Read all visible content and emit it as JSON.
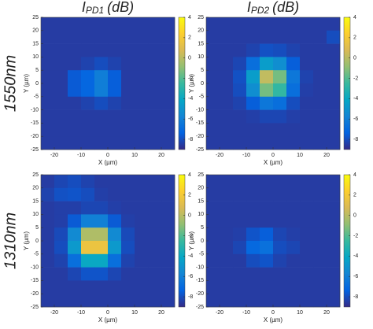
{
  "chart_data": [
    {
      "type": "heatmap",
      "title": {
        "main": "I",
        "sub": "PD1",
        "unit": "(dB)"
      },
      "row_label": "1550nm",
      "xlabel": "X (µm)",
      "ylabel": "Y (µm)",
      "x": [
        -22.5,
        -17.5,
        -12.5,
        -7.5,
        -2.5,
        2.5,
        7.5,
        12.5,
        17.5,
        22.5
      ],
      "y": [
        22.5,
        17.5,
        12.5,
        7.5,
        2.5,
        -2.5,
        -7.5,
        -12.5,
        -17.5,
        -22.5
      ],
      "z": [
        [
          -8.5,
          -8.5,
          -8.5,
          -8.5,
          -8.5,
          -8.5,
          -8.5,
          -8.5,
          -8.5,
          -8.5
        ],
        [
          -8.5,
          -8.5,
          -8.5,
          -8.5,
          -8.5,
          -8.5,
          -8.5,
          -8.5,
          -8.5,
          -8.5
        ],
        [
          -8.5,
          -8.5,
          -8.5,
          -8.5,
          -8.5,
          -8.5,
          -8.5,
          -8.5,
          -8.5,
          -8.5
        ],
        [
          -8.5,
          -8.5,
          -8.5,
          -8.3,
          -8.0,
          -8.3,
          -8.5,
          -8.5,
          -8.5,
          -8.5
        ],
        [
          -8.5,
          -8.5,
          -7.6,
          -7.2,
          -6.1,
          -7.5,
          -8.5,
          -8.5,
          -8.5,
          -8.5
        ],
        [
          -8.5,
          -8.5,
          -7.6,
          -7.2,
          -6.1,
          -7.5,
          -8.5,
          -8.5,
          -8.5,
          -8.5
        ],
        [
          -8.5,
          -8.5,
          -8.5,
          -8.3,
          -8.0,
          -8.3,
          -8.5,
          -8.5,
          -8.5,
          -8.5
        ],
        [
          -8.5,
          -8.5,
          -8.5,
          -8.5,
          -8.5,
          -8.5,
          -8.5,
          -8.5,
          -8.5,
          -8.5
        ],
        [
          -8.5,
          -8.5,
          -8.5,
          -8.5,
          -8.5,
          -8.5,
          -8.5,
          -8.5,
          -8.5,
          -8.5
        ],
        [
          -8.5,
          -8.5,
          -8.5,
          -8.5,
          -8.5,
          -8.5,
          -8.5,
          -8.5,
          -8.5,
          -8.5
        ]
      ],
      "xlim": [
        -25,
        25
      ],
      "ylim": [
        -25,
        25
      ],
      "xticks": [
        -20,
        -10,
        0,
        10,
        20
      ],
      "yticks": [
        -25,
        -20,
        -15,
        -10,
        -5,
        0,
        5,
        10,
        15,
        20,
        25
      ],
      "clim": [
        -9,
        4
      ],
      "cticks": [
        -8,
        -6,
        -4,
        -2,
        0,
        2,
        4
      ],
      "colormap": "parula"
    },
    {
      "type": "heatmap",
      "title": {
        "main": "I",
        "sub": "PD2",
        "unit": "(dB)"
      },
      "xlabel": "X (µm)",
      "ylabel": "Y (µm)",
      "x": [
        -22.5,
        -17.5,
        -12.5,
        -7.5,
        -2.5,
        2.5,
        7.5,
        12.5,
        17.5,
        22.5
      ],
      "y": [
        22.5,
        17.5,
        12.5,
        7.5,
        2.5,
        -2.5,
        -7.5,
        -12.5,
        -17.5,
        -22.5
      ],
      "z": [
        [
          -8.5,
          -8.5,
          -8.5,
          -8.5,
          -8.5,
          -8.5,
          -8.5,
          -8.5,
          -8.5,
          -8.5
        ],
        [
          -8.5,
          -8.5,
          -8.5,
          -8.5,
          -8.5,
          -8.5,
          -8.5,
          -8.5,
          -8.5,
          -8.0
        ],
        [
          -8.5,
          -8.5,
          -8.5,
          -8.3,
          -7.9,
          -8.0,
          -8.3,
          -8.5,
          -8.5,
          -8.5
        ],
        [
          -8.5,
          -8.5,
          -8.2,
          -6.8,
          -4.6,
          -5.3,
          -7.5,
          -8.5,
          -8.5,
          -8.5
        ],
        [
          -8.5,
          -8.5,
          -7.9,
          -4.6,
          0.2,
          -1.4,
          -6.4,
          -8.3,
          -8.5,
          -8.5
        ],
        [
          -8.5,
          -8.5,
          -8.0,
          -5.3,
          -1.4,
          -2.7,
          -6.8,
          -8.4,
          -8.5,
          -8.5
        ],
        [
          -8.5,
          -8.5,
          -8.3,
          -7.5,
          -6.4,
          -6.8,
          -8.0,
          -8.5,
          -8.5,
          -8.5
        ],
        [
          -8.5,
          -8.5,
          -8.5,
          -8.4,
          -8.2,
          -8.2,
          -8.4,
          -8.5,
          -8.5,
          -8.5
        ],
        [
          -8.5,
          -8.5,
          -8.5,
          -8.5,
          -8.5,
          -8.5,
          -8.5,
          -8.5,
          -8.5,
          -8.5
        ],
        [
          -8.5,
          -8.5,
          -8.5,
          -8.5,
          -8.5,
          -8.5,
          -8.5,
          -8.5,
          -8.5,
          -8.5
        ]
      ],
      "xlim": [
        -25,
        25
      ],
      "ylim": [
        -25,
        25
      ],
      "xticks": [
        -20,
        -10,
        0,
        10,
        20
      ],
      "yticks": [
        -25,
        -20,
        -15,
        -10,
        -5,
        0,
        5,
        10,
        15,
        20,
        25
      ],
      "clim": [
        -9,
        4
      ],
      "cticks": [
        -8,
        -6,
        -4,
        -2,
        0,
        2,
        4
      ],
      "colormap": "parula"
    },
    {
      "type": "heatmap",
      "row_label": "1310nm",
      "xlabel": "X (µm)",
      "ylabel": "Y (µm)",
      "x": [
        -22.5,
        -17.5,
        -12.5,
        -7.5,
        -2.5,
        2.5,
        7.5,
        12.5,
        17.5,
        22.5
      ],
      "y": [
        22.5,
        17.5,
        12.5,
        7.5,
        2.5,
        -2.5,
        -7.5,
        -12.5,
        -17.5,
        -22.5
      ],
      "z": [
        [
          -8.5,
          -8.2,
          -8.0,
          -8.3,
          -8.5,
          -8.5,
          -8.5,
          -8.5,
          -8.5,
          -8.5
        ],
        [
          -8.3,
          -7.9,
          -7.8,
          -8.0,
          -8.4,
          -8.5,
          -8.5,
          -8.5,
          -8.5,
          -8.5
        ],
        [
          -8.5,
          -8.4,
          -8.4,
          -8.2,
          -8.2,
          -8.4,
          -8.5,
          -8.5,
          -8.5,
          -8.5
        ],
        [
          -8.5,
          -8.4,
          -7.6,
          -6.0,
          -6.0,
          -7.6,
          -8.4,
          -8.5,
          -8.5,
          -8.5
        ],
        [
          -8.5,
          -8.1,
          -5.5,
          -0.2,
          -0.2,
          -5.5,
          -8.1,
          -8.5,
          -8.5,
          -8.5
        ],
        [
          -8.5,
          -8.0,
          -4.8,
          1.6,
          1.6,
          -4.8,
          -8.0,
          -8.5,
          -8.5,
          -8.5
        ],
        [
          -8.5,
          -8.3,
          -6.8,
          -4.0,
          -4.0,
          -6.8,
          -8.3,
          -8.5,
          -8.5,
          -8.5
        ],
        [
          -8.5,
          -8.5,
          -8.2,
          -7.8,
          -7.8,
          -8.2,
          -8.5,
          -8.5,
          -8.5,
          -8.5
        ],
        [
          -8.5,
          -8.5,
          -8.5,
          -8.5,
          -8.5,
          -8.5,
          -8.5,
          -8.5,
          -8.5,
          -8.5
        ],
        [
          -8.5,
          -8.5,
          -8.5,
          -8.5,
          -8.5,
          -8.5,
          -8.5,
          -8.5,
          -8.5,
          -8.5
        ]
      ],
      "xlim": [
        -25,
        25
      ],
      "ylim": [
        -25,
        25
      ],
      "xticks": [
        -20,
        -10,
        0,
        10,
        20
      ],
      "yticks": [
        -25,
        -20,
        -15,
        -10,
        -5,
        0,
        5,
        10,
        15,
        20,
        25
      ],
      "clim": [
        -9,
        4
      ],
      "cticks": [
        -8,
        -6,
        -4,
        -2,
        0,
        2,
        4
      ],
      "colormap": "parula"
    },
    {
      "type": "heatmap",
      "xlabel": "X (µm)",
      "ylabel": "Y (µm)",
      "x": [
        -22.5,
        -17.5,
        -12.5,
        -7.5,
        -2.5,
        2.5,
        7.5,
        12.5,
        17.5,
        22.5
      ],
      "y": [
        22.5,
        17.5,
        12.5,
        7.5,
        2.5,
        -2.5,
        -7.5,
        -12.5,
        -17.5,
        -22.5
      ],
      "z": [
        [
          -8.5,
          -8.5,
          -8.5,
          -8.5,
          -8.5,
          -8.5,
          -8.5,
          -8.5,
          -8.5,
          -8.5
        ],
        [
          -8.5,
          -8.5,
          -8.5,
          -8.5,
          -8.5,
          -8.5,
          -8.5,
          -8.5,
          -8.5,
          -8.5
        ],
        [
          -8.5,
          -8.5,
          -8.5,
          -8.5,
          -8.5,
          -8.5,
          -8.5,
          -8.5,
          -8.5,
          -8.5
        ],
        [
          -8.5,
          -8.5,
          -8.5,
          -8.5,
          -8.5,
          -8.5,
          -8.5,
          -8.5,
          -8.5,
          -8.5
        ],
        [
          -8.5,
          -8.5,
          -8.4,
          -7.8,
          -7.5,
          -8.2,
          -8.4,
          -8.5,
          -8.5,
          -8.5
        ],
        [
          -8.5,
          -8.5,
          -8.2,
          -7.1,
          -6.7,
          -8.0,
          -8.2,
          -8.5,
          -8.5,
          -8.5
        ],
        [
          -8.5,
          -8.5,
          -8.5,
          -8.0,
          -7.8,
          -8.3,
          -8.5,
          -8.5,
          -8.5,
          -8.5
        ],
        [
          -8.5,
          -8.5,
          -8.5,
          -8.5,
          -8.5,
          -8.5,
          -8.5,
          -8.5,
          -8.5,
          -8.5
        ],
        [
          -8.5,
          -8.5,
          -8.5,
          -8.5,
          -8.5,
          -8.5,
          -8.5,
          -8.5,
          -8.5,
          -8.5
        ],
        [
          -8.5,
          -8.5,
          -8.5,
          -8.5,
          -8.5,
          -8.5,
          -8.5,
          -8.5,
          -8.5,
          -8.5
        ]
      ],
      "xlim": [
        -25,
        25
      ],
      "ylim": [
        -25,
        25
      ],
      "xticks": [
        -20,
        -10,
        0,
        10,
        20
      ],
      "yticks": [
        -25,
        -20,
        -15,
        -10,
        -5,
        0,
        5,
        10,
        15,
        20,
        25
      ],
      "clim": [
        -9,
        4
      ],
      "cticks": [
        -8,
        -6,
        -4,
        -2,
        0,
        2,
        4
      ],
      "colormap": "parula"
    }
  ]
}
